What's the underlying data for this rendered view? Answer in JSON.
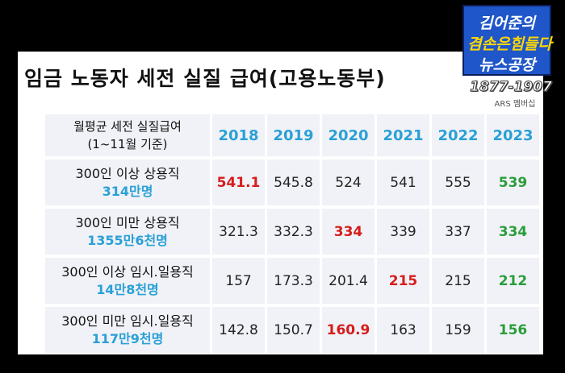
{
  "title": "임금 노동자 세전 실질 급여(고용노동부)",
  "logo": {
    "line1": "김어준의",
    "line2": "겸손은힘들다",
    "line3": "뉴스공장"
  },
  "phone": "1877-1907",
  "ars_label": "ARS 멤버십",
  "colors": {
    "year_header": "#2aa0d6",
    "peak_value": "#d61c1c",
    "latest_value": "#2a9d3a",
    "sub_label": "#2aa0d6"
  },
  "table": {
    "header_label_line1": "월평균 세전 실질급여",
    "header_label_line2": "(1~11월 기준)",
    "years": [
      "2018",
      "2019",
      "2020",
      "2021",
      "2022",
      "2023"
    ],
    "rows": [
      {
        "label": "300인 이상 상용직",
        "sub": "314만명",
        "values": [
          "541.1",
          "545.8",
          "524",
          "541",
          "555",
          "539"
        ],
        "highlight_index": 0
      },
      {
        "label": "300인 미만 상용직",
        "sub": "1355만6천명",
        "values": [
          "321.3",
          "332.3",
          "334",
          "339",
          "337",
          "334"
        ],
        "highlight_index": 2
      },
      {
        "label": "300인 이상 임시.일용직",
        "sub": "14만8천명",
        "values": [
          "157",
          "173.3",
          "201.4",
          "215",
          "215",
          "212"
        ],
        "highlight_index": 3
      },
      {
        "label": "300인 미만 임시.일용직",
        "sub": "117만9천명",
        "values": [
          "142.8",
          "150.7",
          "160.9",
          "163",
          "159",
          "156"
        ],
        "highlight_index": 2
      }
    ]
  }
}
